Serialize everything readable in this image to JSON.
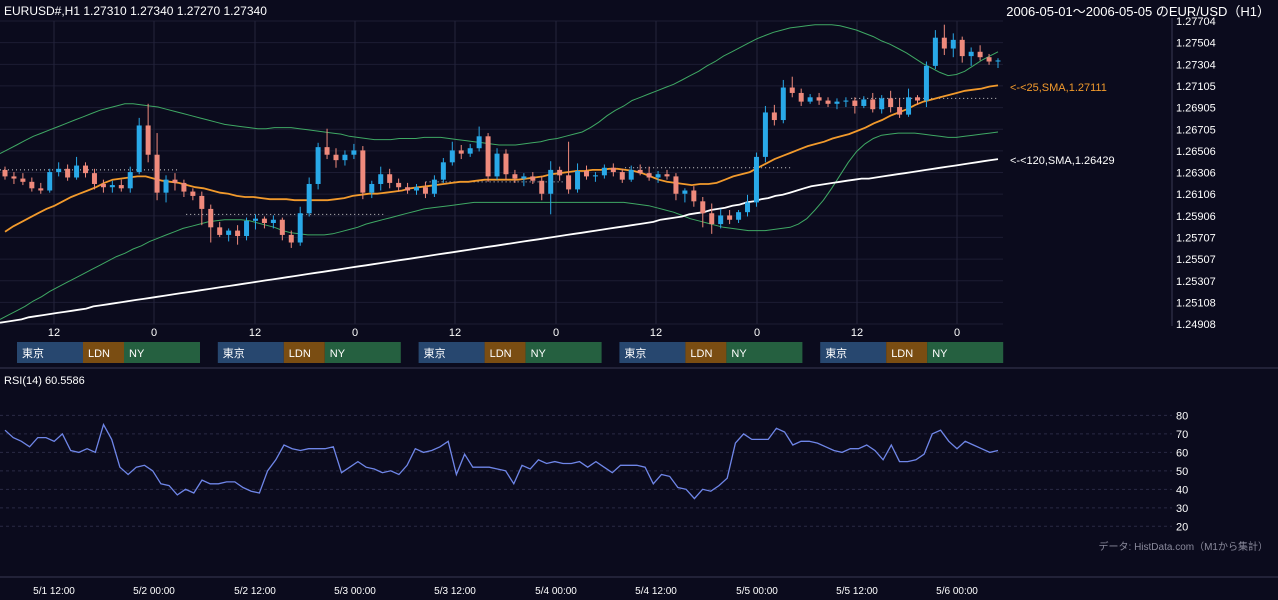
{
  "header": {
    "symbol_info": "EURUSD#,H1 1.27310 1.27340 1.27270 1.27340",
    "range_title": "2006-05-01～2006-05-05 のEUR/USD（H1）"
  },
  "colors": {
    "background": "#0b0b1d",
    "bull": "#29a9e8",
    "bear": "#ef8a7c",
    "sma25": "#f29a2c",
    "sma120": "#ffffff",
    "bollinger": "#3fa864",
    "rsi": "#6f86e8",
    "tokyo": "#27476f",
    "london": "#7a4d12",
    "ny": "#256040"
  },
  "indicators": {
    "sma25_label": "<-<25,SMA,1.27111",
    "sma120_label": "<-<120,SMA,1.26429",
    "rsi_label": "RSI(14) 60.5586",
    "data_source": "データ: HistData.com（M1から集計）"
  },
  "sessions": {
    "tokyo": "東京",
    "london": "LDN",
    "ny": "NY"
  },
  "chart_data": {
    "type": "candlestick",
    "title": "2006-05-01～2006-05-05 のEUR/USD（H1）",
    "price_axis": {
      "ticks": [
        "1.24908",
        "1.25108",
        "1.25307",
        "1.25507",
        "1.25707",
        "1.25906",
        "1.26106",
        "1.26306",
        "1.26506",
        "1.26705",
        "1.26905",
        "1.27105",
        "1.27304",
        "1.27504",
        "1.27704"
      ],
      "ylim": [
        1.24908,
        1.27704
      ]
    },
    "hour_axis_ticks": [
      "12",
      "0",
      "12",
      "0",
      "12",
      "0",
      "12",
      "0",
      "12",
      "0"
    ],
    "date_axis_ticks": [
      "5/1 12:00",
      "5/2 00:00",
      "5/2 12:00",
      "5/3 00:00",
      "5/3 12:00",
      "5/4 00:00",
      "5/4 12:00",
      "5/5 00:00",
      "5/5 12:00",
      "5/6 00:00"
    ],
    "last_close": 1.2734,
    "sma25_last": 1.27111,
    "sma120_last": 1.26429,
    "rsi": {
      "period": 14,
      "last": 60.5586,
      "ticks": [
        "80",
        "70",
        "60",
        "50",
        "40",
        "30",
        "20"
      ],
      "ylim": [
        18,
        84
      ],
      "values": [
        72,
        68,
        66,
        63,
        68,
        68,
        66,
        70,
        61,
        60,
        62,
        60,
        75,
        67,
        52,
        48,
        52,
        53,
        50,
        43,
        42,
        37,
        40,
        38,
        45,
        43,
        43,
        44,
        44,
        41,
        39,
        38,
        50,
        56,
        64,
        62,
        61,
        62,
        62,
        62,
        63,
        49,
        52,
        55,
        52,
        51,
        49,
        50,
        48,
        53,
        62,
        60,
        61,
        63,
        66,
        48,
        59,
        52,
        52,
        52,
        51,
        50,
        43,
        53,
        51,
        56,
        54,
        55,
        54,
        54,
        55,
        52,
        55,
        52,
        49,
        53,
        53,
        53,
        52,
        43,
        48,
        47,
        41,
        40,
        35,
        40,
        39,
        42,
        46,
        65,
        70,
        67,
        67,
        67,
        73,
        71,
        64,
        66,
        66,
        65,
        63,
        61,
        60,
        62,
        62,
        64,
        61,
        56,
        64,
        55,
        55,
        56,
        59,
        70,
        72,
        66,
        62,
        66,
        64,
        62,
        60,
        61
      ]
    },
    "sma25": [
      1.2576,
      1.2581,
      1.2585,
      1.2589,
      1.2593,
      1.2597,
      1.26,
      1.2604,
      1.2608,
      1.2611,
      1.2614,
      1.2617,
      1.2621,
      1.2624,
      1.2625,
      1.2626,
      1.2627,
      1.2627,
      1.2625,
      1.2623,
      1.2622,
      1.2621,
      1.2619,
      1.2617,
      1.2616,
      1.2614,
      1.2612,
      1.2611,
      1.2609,
      1.2608,
      1.2608,
      1.2607,
      1.2606,
      1.2606,
      1.2606,
      1.2605,
      1.2605,
      1.2605,
      1.2605,
      1.2605,
      1.2606,
      1.2607,
      1.2609,
      1.261,
      1.2611,
      1.2611,
      1.2612,
      1.2613,
      1.2614,
      1.2616,
      1.2617,
      1.2618,
      1.2619,
      1.262,
      1.2621,
      1.2622,
      1.2622,
      1.2623,
      1.2624,
      1.2624,
      1.2624,
      1.2624,
      1.2624,
      1.2625,
      1.2626,
      1.2627,
      1.2629,
      1.263,
      1.2631,
      1.2632,
      1.2632,
      1.2633,
      1.2633,
      1.2634,
      1.2634,
      1.2633,
      1.2632,
      1.263,
      1.2627,
      1.2624,
      1.2622,
      1.2621,
      1.262,
      1.2619,
      1.262,
      1.262,
      1.2621,
      1.2624,
      1.2627,
      1.2629,
      1.2631,
      1.2635,
      1.2639,
      1.2643,
      1.2646,
      1.2649,
      1.2652,
      1.2655,
      1.2657,
      1.2659,
      1.2662,
      1.2664,
      1.2666,
      1.2669,
      1.2672,
      1.2676,
      1.2679,
      1.2683,
      1.2686,
      1.2689,
      1.2693,
      1.2696,
      1.2698,
      1.27,
      1.2702,
      1.2704,
      1.2706,
      1.2707,
      1.2708,
      1.271,
      1.2711
    ],
    "sma120": [
      1.2492,
      1.2493,
      1.2494,
      1.2495,
      1.2497,
      1.2498,
      1.2499,
      1.25,
      1.2501,
      1.2502,
      1.2503,
      1.2504,
      1.2505,
      1.2507,
      1.2508,
      1.2509,
      1.251,
      1.2511,
      1.2512,
      1.2513,
      1.2514,
      1.2515,
      1.2516,
      1.2517,
      1.2518,
      1.2519,
      1.252,
      1.2521,
      1.2522,
      1.2523,
      1.2524,
      1.2525,
      1.2526,
      1.2527,
      1.2528,
      1.2529,
      1.253,
      1.2531,
      1.2532,
      1.2533,
      1.2534,
      1.2535,
      1.2536,
      1.2537,
      1.2538,
      1.2539,
      1.254,
      1.2541,
      1.2542,
      1.2543,
      1.2544,
      1.2545,
      1.2546,
      1.2547,
      1.2548,
      1.2549,
      1.255,
      1.2551,
      1.2552,
      1.2553,
      1.2554,
      1.2555,
      1.2556,
      1.2557,
      1.2558,
      1.2559,
      1.256,
      1.2561,
      1.2562,
      1.2563,
      1.2564,
      1.2565,
      1.2566,
      1.2567,
      1.2568,
      1.2569,
      1.257,
      1.2571,
      1.2572,
      1.2573,
      1.2574,
      1.2575,
      1.2576,
      1.2577,
      1.2578,
      1.2579,
      1.258,
      1.2581,
      1.2582,
      1.2583,
      1.2584,
      1.2585,
      1.2587,
      1.2588,
      1.2589,
      1.259,
      1.2592,
      1.2593,
      1.2594,
      1.2596,
      1.2597,
      1.2598,
      1.26,
      1.2601,
      1.2603,
      1.2604,
      1.2606,
      1.2607,
      1.2609,
      1.261,
      1.2612,
      1.2614,
      1.2616,
      1.2618,
      1.2619,
      1.262,
      1.2621,
      1.2622,
      1.2623,
      1.2624,
      1.2625,
      1.2625,
      1.2626,
      1.2627,
      1.2628,
      1.2629,
      1.263,
      1.2631,
      1.2632,
      1.2633,
      1.2634,
      1.2635,
      1.2636,
      1.2637,
      1.2638,
      1.2639,
      1.264,
      1.2641,
      1.2642,
      1.2643
    ],
    "bb_upper": [
      1.2648,
      1.2652,
      1.2656,
      1.266,
      1.2664,
      1.2667,
      1.267,
      1.2673,
      1.2676,
      1.2679,
      1.2682,
      1.2685,
      1.2688,
      1.269,
      1.2692,
      1.2694,
      1.2694,
      1.2693,
      1.2692,
      1.2691,
      1.2689,
      1.2687,
      1.2685,
      1.2683,
      1.2681,
      1.2679,
      1.2677,
      1.2675,
      1.2674,
      1.2673,
      1.2672,
      1.2671,
      1.2671,
      1.2672,
      1.2672,
      1.2672,
      1.2671,
      1.267,
      1.2669,
      1.2668,
      1.2667,
      1.2666,
      1.2664,
      1.2663,
      1.2662,
      1.2661,
      1.2661,
      1.2661,
      1.2662,
      1.2662,
      1.2662,
      1.2663,
      1.2663,
      1.2663,
      1.2662,
      1.2661,
      1.266,
      1.2659,
      1.2658,
      1.2657,
      1.2656,
      1.2656,
      1.2656,
      1.2657,
      1.2658,
      1.2659,
      1.2661,
      1.2662,
      1.2664,
      1.2666,
      1.2668,
      1.2672,
      1.2677,
      1.2683,
      1.2688,
      1.2692,
      1.2697,
      1.27,
      1.2703,
      1.2706,
      1.2709,
      1.2712,
      1.2716,
      1.272,
      1.2724,
      1.2729,
      1.2733,
      1.2738,
      1.2742,
      1.2746,
      1.275,
      1.2754,
      1.2757,
      1.276,
      1.2762,
      1.2764,
      1.2765,
      1.2766,
      1.2767,
      1.2767,
      1.2767,
      1.2766,
      1.2764,
      1.2762,
      1.2759,
      1.2756,
      1.2752,
      1.2749,
      1.2745,
      1.2741,
      1.2736,
      1.2731,
      1.2727,
      1.2723,
      1.272,
      1.2721,
      1.2724,
      1.2729,
      1.2734,
      1.2738,
      1.2742
    ],
    "bb_lower": [
      1.2495,
      1.2499,
      1.2503,
      1.2507,
      1.2512,
      1.2516,
      1.2521,
      1.2525,
      1.2529,
      1.2533,
      1.2537,
      1.2541,
      1.2545,
      1.2549,
      1.2553,
      1.2556,
      1.256,
      1.2563,
      1.2567,
      1.257,
      1.2573,
      1.2576,
      1.2579,
      1.2581,
      1.2583,
      1.2585,
      1.2586,
      1.2587,
      1.2587,
      1.2587,
      1.2586,
      1.2584,
      1.2582,
      1.258,
      1.2577,
      1.2575,
      1.2574,
      1.2573,
      1.2573,
      1.2573,
      1.2574,
      1.2576,
      1.2578,
      1.258,
      1.2583,
      1.2585,
      1.2587,
      1.2589,
      1.2591,
      1.2593,
      1.2595,
      1.2597,
      1.2598,
      1.2599,
      1.26,
      1.2601,
      1.2602,
      1.2603,
      1.2603,
      1.2603,
      1.2603,
      1.2603,
      1.2603,
      1.2603,
      1.2603,
      1.2603,
      1.2603,
      1.2603,
      1.2603,
      1.2603,
      1.2603,
      1.2603,
      1.2603,
      1.2603,
      1.2603,
      1.2603,
      1.2602,
      1.2601,
      1.26,
      1.2598,
      1.2596,
      1.2594,
      1.2591,
      1.2588,
      1.2586,
      1.2584,
      1.2582,
      1.258,
      1.2579,
      1.2578,
      1.2577,
      1.2577,
      1.2577,
      1.2578,
      1.2579,
      1.258,
      1.2583,
      1.2588,
      1.2596,
      1.2605,
      1.2616,
      1.2628,
      1.264,
      1.265,
      1.2657,
      1.2662,
      1.2665,
      1.2666,
      1.2667,
      1.2667,
      1.2667,
      1.2666,
      1.2665,
      1.2664,
      1.2663,
      1.2663,
      1.2664,
      1.2665,
      1.2666,
      1.2667,
      1.2668
    ],
    "dotted_levels": [
      {
        "price": 1.2633,
        "from": 0,
        "to": 27
      },
      {
        "price": 1.2592,
        "from": 28,
        "to": 58
      },
      {
        "price": 1.2622,
        "from": 64,
        "to": 85
      },
      {
        "price": 1.2635,
        "from": 94,
        "to": 119
      },
      {
        "price": 1.2699,
        "from": 128,
        "to": 150
      }
    ],
    "candles": [
      [
        1.2633,
        1.2636,
        1.2624,
        1.2627
      ],
      [
        1.2627,
        1.2631,
        1.262,
        1.2625
      ],
      [
        1.2625,
        1.263,
        1.2619,
        1.2622
      ],
      [
        1.2622,
        1.2626,
        1.2613,
        1.2616
      ],
      [
        1.2616,
        1.2621,
        1.2611,
        1.2614
      ],
      [
        1.2614,
        1.2634,
        1.2612,
        1.2631
      ],
      [
        1.2631,
        1.264,
        1.2627,
        1.2634
      ],
      [
        1.2634,
        1.2638,
        1.2623,
        1.2626
      ],
      [
        1.2626,
        1.2645,
        1.2624,
        1.2637
      ],
      [
        1.2637,
        1.264,
        1.2626,
        1.263
      ],
      [
        1.263,
        1.2634,
        1.2615,
        1.262
      ],
      [
        1.262,
        1.2624,
        1.2612,
        1.2617
      ],
      [
        1.2617,
        1.2623,
        1.2612,
        1.2619
      ],
      [
        1.2619,
        1.2624,
        1.2613,
        1.2616
      ],
      [
        1.2616,
        1.2636,
        1.2612,
        1.2631
      ],
      [
        1.2631,
        1.2681,
        1.2629,
        1.2674
      ],
      [
        1.2674,
        1.2694,
        1.264,
        1.2647
      ],
      [
        1.2647,
        1.2667,
        1.2605,
        1.2612
      ],
      [
        1.2612,
        1.2628,
        1.2603,
        1.2624
      ],
      [
        1.2624,
        1.263,
        1.2614,
        1.2621
      ],
      [
        1.2621,
        1.2624,
        1.2608,
        1.2613
      ],
      [
        1.2613,
        1.2616,
        1.2605,
        1.2609
      ],
      [
        1.2609,
        1.2613,
        1.2582,
        1.2597
      ],
      [
        1.2597,
        1.2601,
        1.2566,
        1.258
      ],
      [
        1.258,
        1.2585,
        1.2571,
        1.2573
      ],
      [
        1.2573,
        1.2579,
        1.2567,
        1.2577
      ],
      [
        1.2577,
        1.2582,
        1.2564,
        1.2572
      ],
      [
        1.2572,
        1.2589,
        1.2568,
        1.2586
      ],
      [
        1.2586,
        1.2592,
        1.2578,
        1.2588
      ],
      [
        1.2588,
        1.259,
        1.2579,
        1.2584
      ],
      [
        1.2584,
        1.2591,
        1.2579,
        1.2587
      ],
      [
        1.2587,
        1.2589,
        1.2568,
        1.2573
      ],
      [
        1.2573,
        1.2577,
        1.2561,
        1.2566
      ],
      [
        1.2566,
        1.2599,
        1.2563,
        1.2593
      ],
      [
        1.2593,
        1.2626,
        1.259,
        1.262
      ],
      [
        1.262,
        1.2658,
        1.2615,
        1.2654
      ],
      [
        1.2654,
        1.2671,
        1.2643,
        1.2647
      ],
      [
        1.2647,
        1.2653,
        1.2635,
        1.2642
      ],
      [
        1.2642,
        1.2651,
        1.2637,
        1.2647
      ],
      [
        1.2647,
        1.2657,
        1.2643,
        1.2651
      ],
      [
        1.2651,
        1.2655,
        1.2606,
        1.2612
      ],
      [
        1.2612,
        1.2623,
        1.2607,
        1.262
      ],
      [
        1.262,
        1.2636,
        1.2614,
        1.2629
      ],
      [
        1.2629,
        1.2634,
        1.2616,
        1.2621
      ],
      [
        1.2621,
        1.2625,
        1.2613,
        1.2617
      ],
      [
        1.2617,
        1.2621,
        1.2611,
        1.2614
      ],
      [
        1.2614,
        1.262,
        1.261,
        1.2617
      ],
      [
        1.2617,
        1.2622,
        1.2607,
        1.2611
      ],
      [
        1.2611,
        1.2628,
        1.2608,
        1.2624
      ],
      [
        1.2624,
        1.2644,
        1.2621,
        1.264
      ],
      [
        1.264,
        1.2659,
        1.2637,
        1.2651
      ],
      [
        1.2651,
        1.2656,
        1.2643,
        1.2648
      ],
      [
        1.2648,
        1.2657,
        1.2645,
        1.2653
      ],
      [
        1.2653,
        1.2673,
        1.265,
        1.2664
      ],
      [
        1.2664,
        1.2667,
        1.2622,
        1.2627
      ],
      [
        1.2627,
        1.2653,
        1.2624,
        1.2648
      ],
      [
        1.2648,
        1.2652,
        1.2624,
        1.2629
      ],
      [
        1.2629,
        1.2633,
        1.2621,
        1.2625
      ],
      [
        1.2625,
        1.263,
        1.2618,
        1.2627
      ],
      [
        1.2627,
        1.2631,
        1.262,
        1.2623
      ],
      [
        1.2623,
        1.2627,
        1.2605,
        1.2611
      ],
      [
        1.2611,
        1.2641,
        1.2592,
        1.2633
      ],
      [
        1.2633,
        1.2636,
        1.2623,
        1.2628
      ],
      [
        1.2628,
        1.2659,
        1.2611,
        1.2615
      ],
      [
        1.2615,
        1.2639,
        1.2612,
        1.2632
      ],
      [
        1.2632,
        1.2637,
        1.2624,
        1.2627
      ],
      [
        1.2627,
        1.2631,
        1.2622,
        1.2628
      ],
      [
        1.2628,
        1.2638,
        1.2625,
        1.2635
      ],
      [
        1.2635,
        1.2639,
        1.2627,
        1.2631
      ],
      [
        1.2631,
        1.2634,
        1.2621,
        1.2624
      ],
      [
        1.2624,
        1.2637,
        1.2622,
        1.2633
      ],
      [
        1.2633,
        1.2638,
        1.2628,
        1.263
      ],
      [
        1.263,
        1.2636,
        1.2623,
        1.2626
      ],
      [
        1.2626,
        1.2632,
        1.2621,
        1.2629
      ],
      [
        1.2629,
        1.2633,
        1.2624,
        1.2627
      ],
      [
        1.2627,
        1.263,
        1.2605,
        1.2611
      ],
      [
        1.2611,
        1.2616,
        1.2603,
        1.2614
      ],
      [
        1.2614,
        1.2618,
        1.2599,
        1.2604
      ],
      [
        1.2604,
        1.2608,
        1.258,
        1.2593
      ],
      [
        1.2593,
        1.2602,
        1.2574,
        1.2583
      ],
      [
        1.2583,
        1.2597,
        1.2579,
        1.2591
      ],
      [
        1.2591,
        1.2596,
        1.2583,
        1.2587
      ],
      [
        1.2587,
        1.2596,
        1.2584,
        1.2594
      ],
      [
        1.2594,
        1.261,
        1.259,
        1.2603
      ],
      [
        1.2603,
        1.2649,
        1.2599,
        1.2645
      ],
      [
        1.2645,
        1.2692,
        1.264,
        1.2686
      ],
      [
        1.2686,
        1.2693,
        1.2674,
        1.2679
      ],
      [
        1.2679,
        1.2716,
        1.2676,
        1.2709
      ],
      [
        1.2709,
        1.2719,
        1.27,
        1.2704
      ],
      [
        1.2704,
        1.2708,
        1.2692,
        1.2696
      ],
      [
        1.2696,
        1.2703,
        1.2694,
        1.27
      ],
      [
        1.27,
        1.2704,
        1.2693,
        1.2697
      ],
      [
        1.2697,
        1.27,
        1.2691,
        1.2694
      ],
      [
        1.2694,
        1.2699,
        1.2689,
        1.2696
      ],
      [
        1.2696,
        1.27,
        1.2691,
        1.2697
      ],
      [
        1.2697,
        1.27,
        1.2685,
        1.2692
      ],
      [
        1.2692,
        1.2701,
        1.269,
        1.2698
      ],
      [
        1.2698,
        1.2704,
        1.2686,
        1.2689
      ],
      [
        1.2689,
        1.2702,
        1.2685,
        1.2699
      ],
      [
        1.2699,
        1.2706,
        1.2686,
        1.2691
      ],
      [
        1.2691,
        1.2699,
        1.2681,
        1.2684
      ],
      [
        1.2684,
        1.2708,
        1.2682,
        1.27
      ],
      [
        1.27,
        1.2702,
        1.2693,
        1.2697
      ],
      [
        1.2697,
        1.2733,
        1.2691,
        1.2729
      ],
      [
        1.2729,
        1.2762,
        1.2726,
        1.2755
      ],
      [
        1.2755,
        1.2767,
        1.2739,
        1.2745
      ],
      [
        1.2745,
        1.2759,
        1.2737,
        1.2753
      ],
      [
        1.2753,
        1.2756,
        1.2732,
        1.2738
      ],
      [
        1.2738,
        1.2746,
        1.2729,
        1.2742
      ],
      [
        1.2742,
        1.2748,
        1.2734,
        1.2737
      ],
      [
        1.2737,
        1.274,
        1.273,
        1.2733
      ],
      [
        1.2733,
        1.2736,
        1.2727,
        1.2734
      ]
    ]
  }
}
